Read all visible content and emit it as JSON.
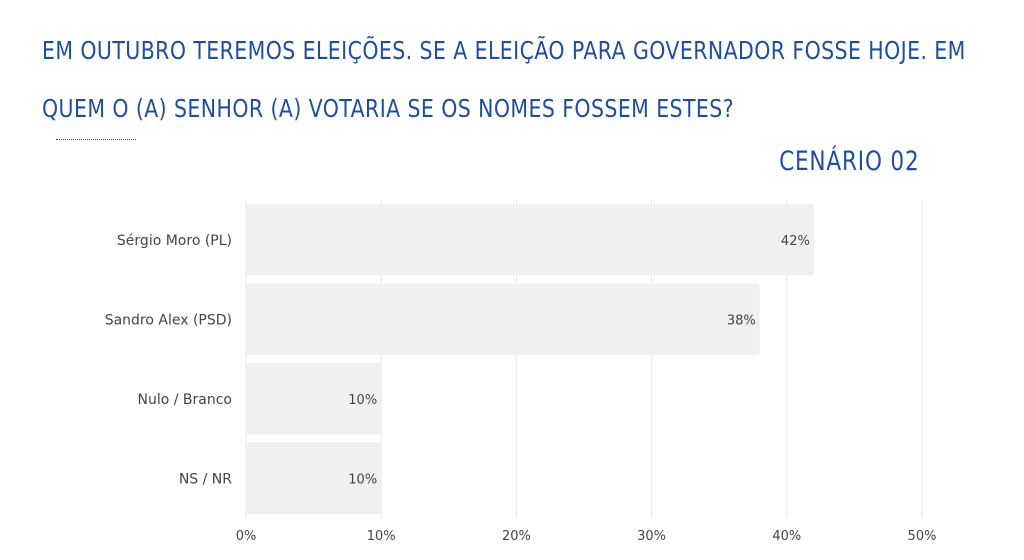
{
  "title_lines": [
    "EM OUTUBRO TEREMOS ELEIÇÕES. SE A ELEIÇÃO PARA GOVERNADOR  FOSSE HOJE. EM",
    "QUEM O (A) SENHOR (A) VOTARIA SE OS NOMES FOSSEM ESTES?"
  ],
  "subtitle": "CENÁRIO 02",
  "colors": {
    "title": "#1f4e9c",
    "bar": "#eff0f1",
    "text": "#444444",
    "grid": "#e6e6e6"
  },
  "chart_data": {
    "type": "bar",
    "orientation": "horizontal",
    "categories": [
      "Sérgio Moro (PL)",
      "Sandro Alex (PSD)",
      "Nulo / Branco",
      "NS / NR"
    ],
    "values": [
      42,
      38,
      10,
      10
    ],
    "data_labels": [
      "42%",
      "38%",
      "10%",
      "10%"
    ],
    "xlim": [
      0,
      50
    ],
    "xticks": [
      0,
      10,
      20,
      30,
      40,
      50
    ],
    "xtick_labels": [
      "0%",
      "10%",
      "20%",
      "30%",
      "40%",
      "50%"
    ],
    "grid": true,
    "legend": false
  }
}
